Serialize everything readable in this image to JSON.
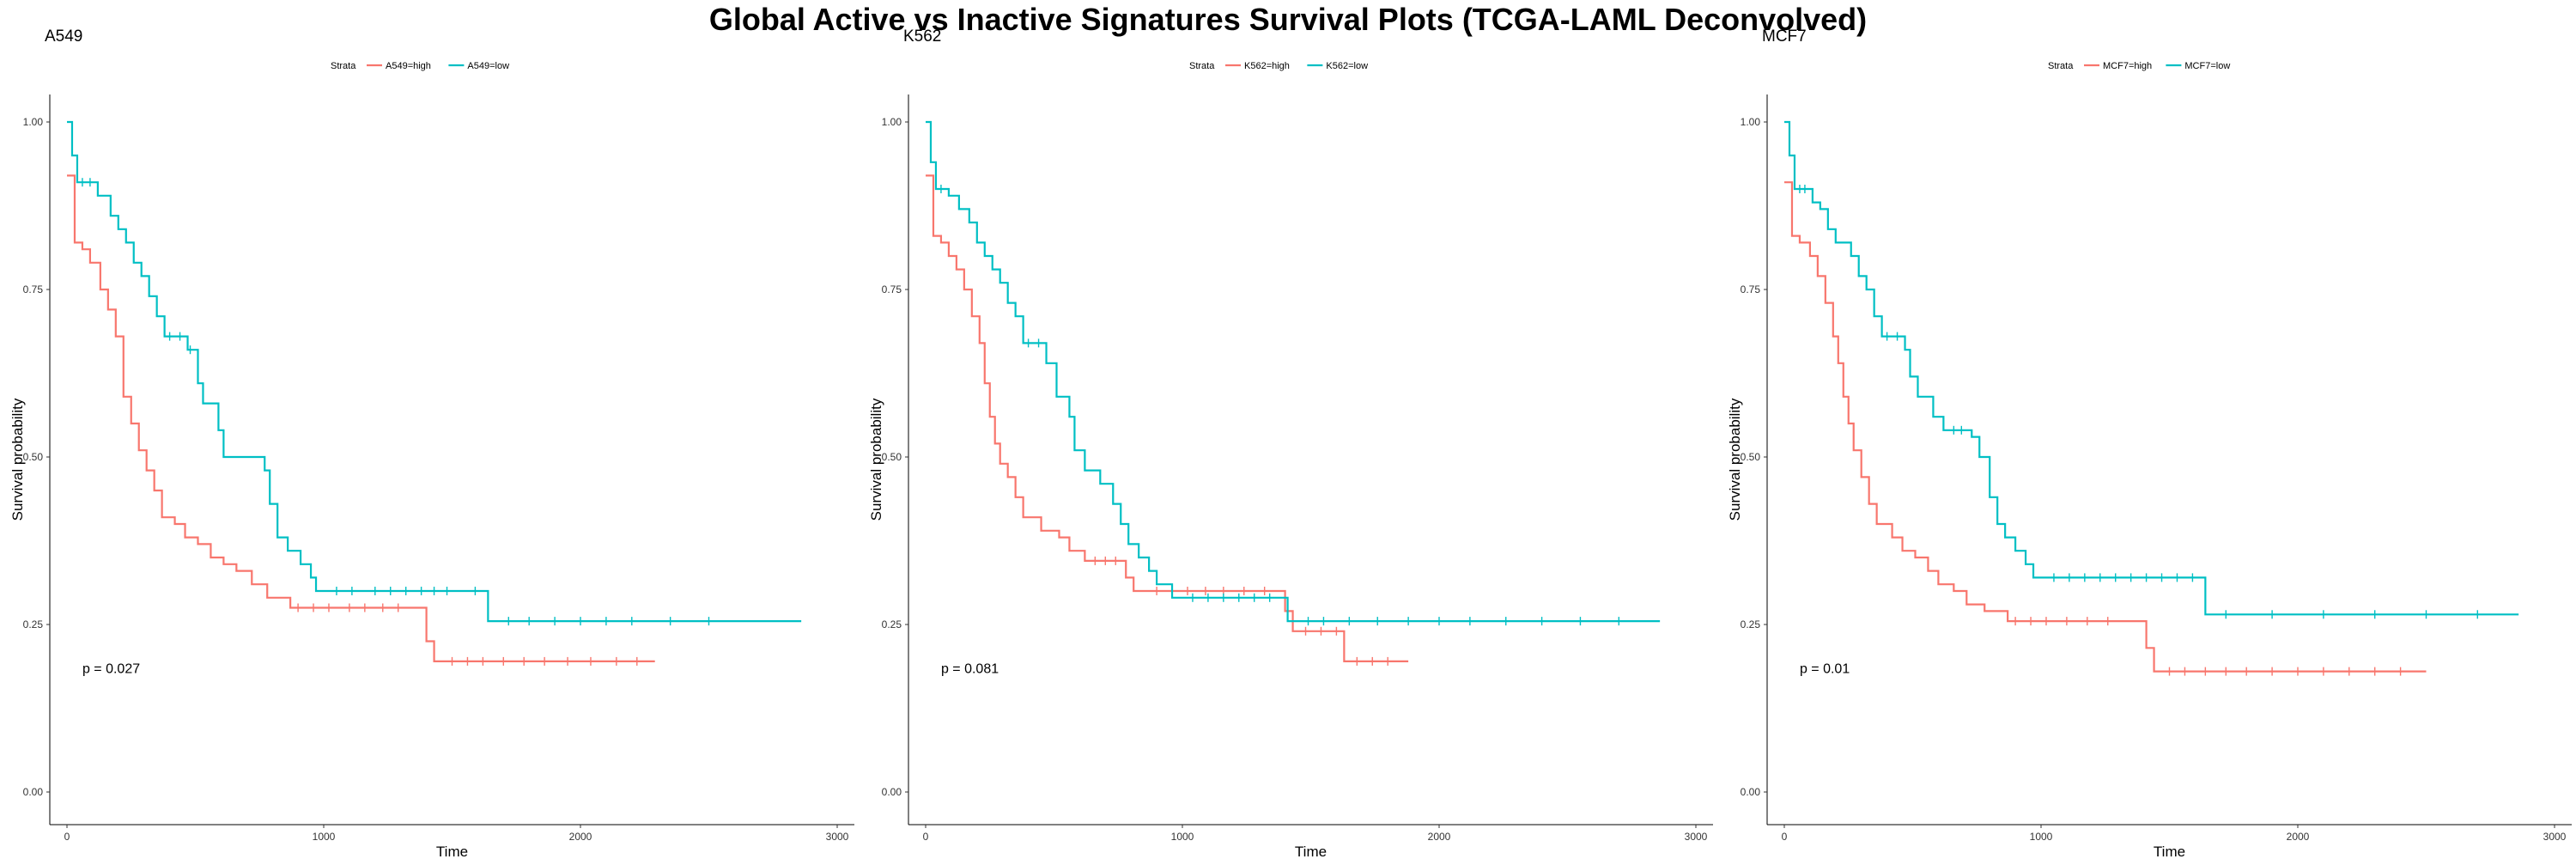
{
  "main_title": "Global Active vs Inactive Signatures Survival Plots (TCGA-LAML Deconvolved)",
  "colors": {
    "high": "#F8766D",
    "low": "#00BFC4"
  },
  "chart_data": [
    {
      "type": "line",
      "title": "A549",
      "xlabel": "Time",
      "ylabel": "Survival probability",
      "xlim": [
        0,
        3000
      ],
      "ylim": [
        0,
        1
      ],
      "x_ticks": [
        0,
        1000,
        2000,
        3000
      ],
      "y_ticks": [
        "0.00",
        "0.25",
        "0.50",
        "0.75",
        "1.00"
      ],
      "legend": {
        "position": "top",
        "title": "Strata"
      },
      "pvalue_text": "p = 0.027",
      "series": [
        {
          "name": "A549=high",
          "steps": [
            [
              0,
              0.92
            ],
            [
              30,
              0.82
            ],
            [
              60,
              0.81
            ],
            [
              90,
              0.79
            ],
            [
              130,
              0.75
            ],
            [
              160,
              0.72
            ],
            [
              190,
              0.68
            ],
            [
              220,
              0.59
            ],
            [
              250,
              0.55
            ],
            [
              280,
              0.51
            ],
            [
              310,
              0.48
            ],
            [
              340,
              0.45
            ],
            [
              370,
              0.41
            ],
            [
              420,
              0.4
            ],
            [
              460,
              0.38
            ],
            [
              510,
              0.37
            ],
            [
              560,
              0.35
            ],
            [
              610,
              0.34
            ],
            [
              660,
              0.33
            ],
            [
              720,
              0.31
            ],
            [
              780,
              0.29
            ],
            [
              870,
              0.275
            ],
            [
              1400,
              0.225
            ],
            [
              1430,
              0.195
            ],
            [
              2290,
              0.195
            ]
          ],
          "censor_x": [
            900,
            960,
            1020,
            1100,
            1160,
            1230,
            1290,
            1500,
            1560,
            1620,
            1700,
            1780,
            1860,
            1950,
            2040,
            2140,
            2220
          ]
        },
        {
          "name": "A549=low",
          "steps": [
            [
              0,
              1.0
            ],
            [
              20,
              0.95
            ],
            [
              40,
              0.91
            ],
            [
              120,
              0.89
            ],
            [
              170,
              0.86
            ],
            [
              200,
              0.84
            ],
            [
              230,
              0.82
            ],
            [
              260,
              0.79
            ],
            [
              290,
              0.77
            ],
            [
              320,
              0.74
            ],
            [
              350,
              0.71
            ],
            [
              380,
              0.68
            ],
            [
              470,
              0.66
            ],
            [
              510,
              0.61
            ],
            [
              530,
              0.58
            ],
            [
              590,
              0.54
            ],
            [
              610,
              0.5
            ],
            [
              770,
              0.48
            ],
            [
              790,
              0.43
            ],
            [
              820,
              0.38
            ],
            [
              860,
              0.36
            ],
            [
              910,
              0.34
            ],
            [
              950,
              0.32
            ],
            [
              970,
              0.3
            ],
            [
              1640,
              0.255
            ],
            [
              2860,
              0.255
            ]
          ],
          "censor_x": [
            60,
            90,
            400,
            440,
            480,
            1050,
            1110,
            1200,
            1260,
            1320,
            1380,
            1430,
            1480,
            1590,
            1720,
            1800,
            1900,
            2000,
            2100,
            2200,
            2350,
            2500
          ]
        }
      ]
    },
    {
      "type": "line",
      "title": "K562",
      "xlabel": "Time",
      "ylabel": "Survival probability",
      "xlim": [
        0,
        3000
      ],
      "ylim": [
        0,
        1
      ],
      "x_ticks": [
        0,
        1000,
        2000,
        3000
      ],
      "y_ticks": [
        "0.00",
        "0.25",
        "0.50",
        "0.75",
        "1.00"
      ],
      "legend": {
        "position": "top",
        "title": "Strata"
      },
      "pvalue_text": "p = 0.081",
      "series": [
        {
          "name": "K562=high",
          "steps": [
            [
              0,
              0.92
            ],
            [
              30,
              0.83
            ],
            [
              60,
              0.82
            ],
            [
              90,
              0.8
            ],
            [
              120,
              0.78
            ],
            [
              150,
              0.75
            ],
            [
              180,
              0.71
            ],
            [
              210,
              0.67
            ],
            [
              230,
              0.61
            ],
            [
              250,
              0.56
            ],
            [
              270,
              0.52
            ],
            [
              290,
              0.49
            ],
            [
              320,
              0.47
            ],
            [
              350,
              0.44
            ],
            [
              380,
              0.41
            ],
            [
              450,
              0.39
            ],
            [
              520,
              0.38
            ],
            [
              560,
              0.36
            ],
            [
              620,
              0.345
            ],
            [
              780,
              0.32
            ],
            [
              810,
              0.3
            ],
            [
              1400,
              0.27
            ],
            [
              1430,
              0.24
            ],
            [
              1630,
              0.195
            ],
            [
              1880,
              0.195
            ]
          ],
          "censor_x": [
            660,
            700,
            740,
            900,
            960,
            1020,
            1090,
            1160,
            1240,
            1320,
            1480,
            1540,
            1600,
            1680,
            1740,
            1800
          ]
        },
        {
          "name": "K562=low",
          "steps": [
            [
              0,
              1.0
            ],
            [
              20,
              0.94
            ],
            [
              40,
              0.9
            ],
            [
              90,
              0.89
            ],
            [
              130,
              0.87
            ],
            [
              170,
              0.85
            ],
            [
              200,
              0.82
            ],
            [
              230,
              0.8
            ],
            [
              260,
              0.78
            ],
            [
              290,
              0.76
            ],
            [
              320,
              0.73
            ],
            [
              350,
              0.71
            ],
            [
              380,
              0.67
            ],
            [
              470,
              0.64
            ],
            [
              510,
              0.59
            ],
            [
              560,
              0.56
            ],
            [
              580,
              0.51
            ],
            [
              620,
              0.48
            ],
            [
              680,
              0.46
            ],
            [
              730,
              0.43
            ],
            [
              760,
              0.4
            ],
            [
              790,
              0.37
            ],
            [
              830,
              0.35
            ],
            [
              870,
              0.33
            ],
            [
              900,
              0.31
            ],
            [
              960,
              0.29
            ],
            [
              1410,
              0.255
            ],
            [
              2860,
              0.255
            ]
          ],
          "censor_x": [
            60,
            400,
            440,
            1040,
            1100,
            1160,
            1220,
            1280,
            1340,
            1490,
            1550,
            1650,
            1760,
            1880,
            2000,
            2120,
            2260,
            2400,
            2550,
            2700
          ]
        }
      ]
    },
    {
      "type": "line",
      "title": "MCF7",
      "xlabel": "Time",
      "ylabel": "Survival probability",
      "xlim": [
        0,
        3000
      ],
      "ylim": [
        0,
        1
      ],
      "x_ticks": [
        0,
        1000,
        2000,
        3000
      ],
      "y_ticks": [
        "0.00",
        "0.25",
        "0.50",
        "0.75",
        "1.00"
      ],
      "legend": {
        "position": "top",
        "title": "Strata"
      },
      "pvalue_text": "p = 0.01",
      "series": [
        {
          "name": "MCF7=high",
          "steps": [
            [
              0,
              0.91
            ],
            [
              30,
              0.83
            ],
            [
              60,
              0.82
            ],
            [
              100,
              0.8
            ],
            [
              130,
              0.77
            ],
            [
              160,
              0.73
            ],
            [
              190,
              0.68
            ],
            [
              210,
              0.64
            ],
            [
              230,
              0.59
            ],
            [
              250,
              0.55
            ],
            [
              270,
              0.51
            ],
            [
              300,
              0.47
            ],
            [
              330,
              0.43
            ],
            [
              360,
              0.4
            ],
            [
              420,
              0.38
            ],
            [
              460,
              0.36
            ],
            [
              510,
              0.35
            ],
            [
              560,
              0.33
            ],
            [
              600,
              0.31
            ],
            [
              660,
              0.3
            ],
            [
              710,
              0.28
            ],
            [
              780,
              0.27
            ],
            [
              870,
              0.255
            ],
            [
              1410,
              0.215
            ],
            [
              1440,
              0.18
            ],
            [
              2500,
              0.18
            ]
          ],
          "censor_x": [
            900,
            960,
            1020,
            1100,
            1180,
            1260,
            1500,
            1560,
            1640,
            1720,
            1800,
            1900,
            2000,
            2100,
            2200,
            2300,
            2400
          ]
        },
        {
          "name": "MCF7=low",
          "steps": [
            [
              0,
              1.0
            ],
            [
              20,
              0.95
            ],
            [
              40,
              0.9
            ],
            [
              110,
              0.88
            ],
            [
              140,
              0.87
            ],
            [
              170,
              0.84
            ],
            [
              200,
              0.82
            ],
            [
              260,
              0.8
            ],
            [
              290,
              0.77
            ],
            [
              320,
              0.75
            ],
            [
              350,
              0.71
            ],
            [
              380,
              0.68
            ],
            [
              470,
              0.66
            ],
            [
              490,
              0.62
            ],
            [
              520,
              0.59
            ],
            [
              580,
              0.56
            ],
            [
              620,
              0.54
            ],
            [
              730,
              0.53
            ],
            [
              760,
              0.5
            ],
            [
              800,
              0.44
            ],
            [
              830,
              0.4
            ],
            [
              860,
              0.38
            ],
            [
              900,
              0.36
            ],
            [
              940,
              0.34
            ],
            [
              970,
              0.32
            ],
            [
              1640,
              0.265
            ],
            [
              2860,
              0.265
            ]
          ],
          "censor_x": [
            60,
            80,
            400,
            440,
            660,
            690,
            1050,
            1110,
            1170,
            1230,
            1290,
            1350,
            1410,
            1470,
            1530,
            1590,
            1720,
            1900,
            2100,
            2300,
            2500,
            2700
          ]
        }
      ]
    }
  ]
}
